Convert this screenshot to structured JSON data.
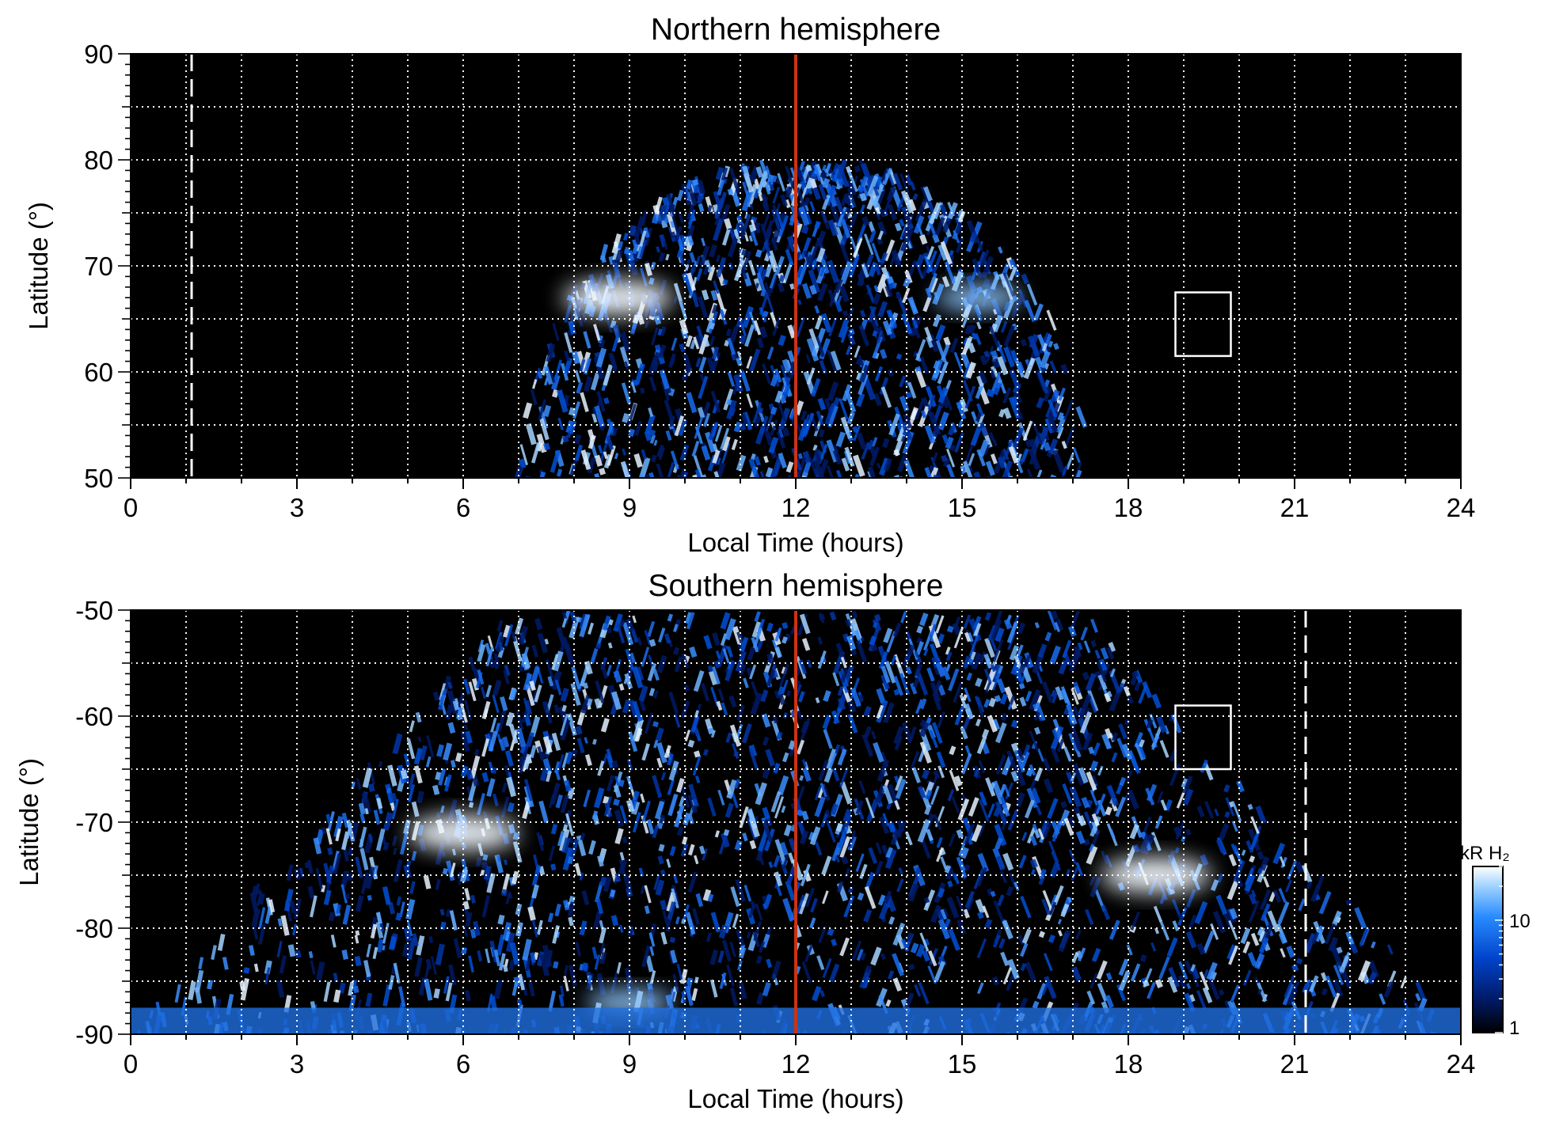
{
  "chart_data": [
    {
      "type": "heatmap",
      "title": "Northern hemisphere",
      "xlabel": "Local Time (hours)",
      "ylabel": "Latitude (°)",
      "xlim": [
        0,
        24
      ],
      "ylim": [
        50,
        90
      ],
      "xticks": [
        "0",
        "3",
        "6",
        "9",
        "12",
        "15",
        "18",
        "21",
        "24"
      ],
      "yticks": [
        "50",
        "60",
        "70",
        "80",
        "90"
      ],
      "grid": true,
      "vertical_line_local_time": 12,
      "vertical_line_color": "#cc3311",
      "dashed_line_local_time": 1.1,
      "box": {
        "lt": [
          18.85,
          19.85
        ],
        "lat": [
          61.5,
          67.5
        ]
      },
      "emission_region": {
        "lt_range": [
          7.0,
          17.3
        ],
        "lat_min": 50,
        "lat_max": 80
      },
      "bright_spots": [
        {
          "lt": 8.8,
          "lat": 67,
          "level": "high"
        },
        {
          "lt": 15.3,
          "lat": 67,
          "level": "medium"
        }
      ]
    },
    {
      "type": "heatmap",
      "title": "Southern hemisphere",
      "xlabel": "Local Time (hours)",
      "ylabel": "Latitude (°)",
      "xlim": [
        0,
        24
      ],
      "ylim": [
        -90,
        -50
      ],
      "xticks": [
        "0",
        "3",
        "6",
        "9",
        "12",
        "15",
        "18",
        "21",
        "24"
      ],
      "yticks": [
        "-90",
        "-80",
        "-70",
        "-60",
        "-50"
      ],
      "grid": true,
      "vertical_line_local_time": 12,
      "vertical_line_color": "#cc3311",
      "dashed_line_local_time": 21.2,
      "box": {
        "lt": [
          18.85,
          19.85
        ],
        "lat": [
          -65,
          -59
        ]
      },
      "emission_region": {
        "lt_range": [
          0,
          24
        ],
        "lat_min": -90,
        "lat_max": -50
      },
      "bright_spots": [
        {
          "lt": 6.0,
          "lat": -71,
          "level": "high"
        },
        {
          "lt": 18.5,
          "lat": -75,
          "level": "high"
        },
        {
          "lt": 9.0,
          "lat": -87,
          "level": "medium"
        }
      ]
    }
  ],
  "colorbar": {
    "label": "kR H₂",
    "ticks": [
      "1",
      "10"
    ],
    "scale": "log",
    "range": [
      1,
      30
    ],
    "colors": [
      "#000000",
      "#001a66",
      "#0044cc",
      "#2a8cff",
      "#9fd2ff",
      "#ffffff"
    ]
  }
}
